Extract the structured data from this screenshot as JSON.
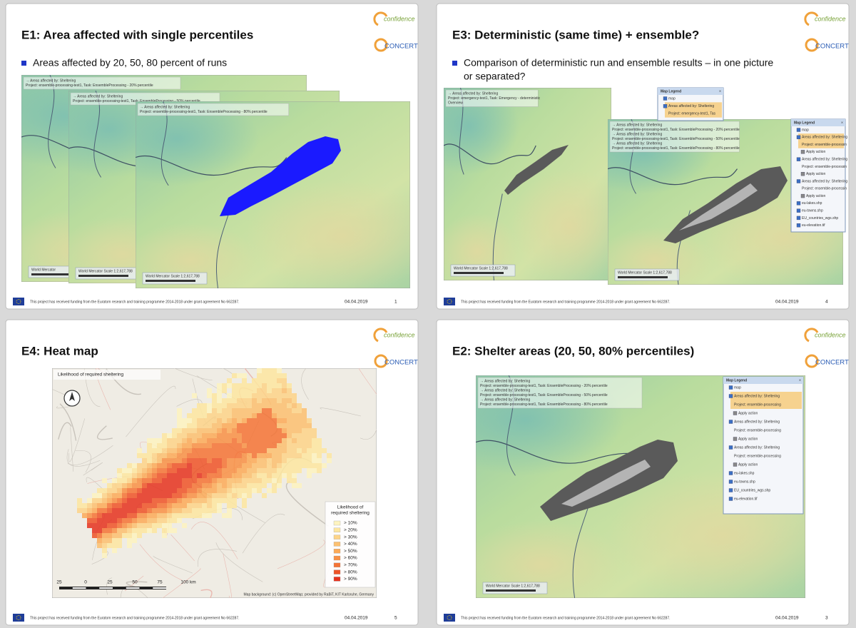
{
  "footer": "This project has received funding from the Euratom research and training programme 2014-2018 under grant agreement No 662287.",
  "logo": {
    "top": "confidence",
    "bottom": "CONCERT"
  },
  "slides": [
    {
      "title": "E1: Area affected with single percentiles",
      "bullet": [
        "Areas affected by 20, 50, 80 percent of runs"
      ],
      "date": "04.04.2019",
      "page": "1",
      "maps": [
        {
          "info": [
            "→ Areas affected by: Sheltering",
            "Project: ensemble-processing-test1, Task: EnsembleProcessing - 20% percentile"
          ],
          "scale": "World Mercator"
        },
        {
          "info": [
            "→ Areas affected by: Sheltering",
            "Project: ensemble-processing-test1, Task: EnsembleProcessing - 50% percentile"
          ],
          "scale": "World Mercator   Scale 1:2,617,788"
        },
        {
          "info": [
            "→ Areas affected by: Sheltering",
            "Project: ensemble-processing-test1, Task: EnsembleProcessing - 80% percentile"
          ],
          "scale": "World Mercator   Scale 1:2,617,788"
        }
      ]
    },
    {
      "title": "E3: Deterministic (same time) + ensemble?",
      "bullet": [
        "Comparison of deterministic run and ensemble results – in one picture",
        "or separated?"
      ],
      "date": "04.04.2019",
      "page": "4",
      "maps": [
        {
          "info": [
            "→ Areas affected by: Sheltering",
            "Project: emergency-test1, Task: Emergency - deterministic",
            "Overview"
          ],
          "scale": "World Mercator   Scale 1:2,617,788"
        },
        {
          "info": [
            "→ Areas affected by: Sheltering",
            "Project: ensemble-processing-test1, Task: EnsembleProcessing - 20% percentile",
            "→ Areas affected by: Sheltering",
            "Project: ensemble-processing-test1, Task: EnsembleProcessing - 50% percentile",
            "→ Areas affected by: Sheltering",
            "Project: ensemble-processing-test1, Task: EnsembleProcessing - 80% percentile"
          ],
          "scale": "World Mercator   Scale 1:2,617,788"
        }
      ],
      "legends": [
        {
          "title": "Map Legend",
          "items": [
            "map",
            "Areas affected by: Sheltering",
            "Project: emergency-test1, Tas"
          ]
        },
        {
          "title": "Map Legend",
          "items": [
            "map",
            "Areas affected by: Sheltering",
            "Project: ensemble-processin",
            "Apply action",
            "Areas affected by: Sheltering",
            "Project: ensemble-processin",
            "Apply action",
            "Areas affected by: Sheltering",
            "Project: ensemble-processin",
            "Apply action",
            "eu-lakes.shp",
            "eu-towns.shp",
            "EU_countries_wgs.shp",
            "eu-elevation.tif"
          ]
        }
      ]
    },
    {
      "title": "E4: Heat map",
      "bullet": [],
      "date": "04.04.2019",
      "page": "5",
      "heatmap": {
        "map_title": "Likelihood of required sheltering",
        "legend_title": [
          "Likelihood of",
          "required sheltering"
        ],
        "legend_items": [
          {
            "label": "> 10%",
            "color": "#fdf3c0"
          },
          {
            "label": "> 20%",
            "color": "#fde6a0"
          },
          {
            "label": "> 30%",
            "color": "#fdd488"
          },
          {
            "label": "> 40%",
            "color": "#fcc070"
          },
          {
            "label": "> 50%",
            "color": "#fbaa58"
          },
          {
            "label": "> 60%",
            "color": "#f89045"
          },
          {
            "label": "> 70%",
            "color": "#f47335"
          },
          {
            "label": "> 80%",
            "color": "#ee5428"
          },
          {
            "label": "> 90%",
            "color": "#e5321e"
          }
        ],
        "scale_labels": [
          "25",
          "0",
          "25",
          "50",
          "75",
          "100 km"
        ],
        "attribution": "Map background: (c) OpenStreetMap; provided by RaBiT, KIT Karlsruhe, Germany"
      }
    },
    {
      "title": "E2: Shelter areas (20, 50, 80% percentiles)",
      "bullet": [],
      "date": "04.04.2019",
      "page": "3",
      "maps": [
        {
          "info": [
            "→ Areas affected by: Sheltering",
            "Project: ensemble-processing-test1, Task: EnsembleProcessing - 20% percentile",
            "→ Areas affected by: Sheltering",
            "Project: ensemble-processing-test1, Task: EnsembleProcessing - 50% percentile",
            "→ Areas affected by: Sheltering",
            "Project: ensemble-processing-test1, Task: EnsembleProcessing - 80% percentile"
          ],
          "scale": "World Mercator   Scale 1:2,617,788"
        }
      ],
      "legends": [
        {
          "title": "Map Legend",
          "items": [
            "map",
            "Areas affected by: Sheltering",
            "Project: ensemble-processing",
            "Apply action",
            "Areas affected by: Sheltering",
            "Project: ensemble-processing",
            "Apply action",
            "Areas affected by: Sheltering",
            "Project: ensemble-processing",
            "Apply action",
            "eu-lakes.shp",
            "eu-towns.shp",
            "EU_countries_wgs.shp",
            "eu-elevation.tif"
          ]
        }
      ]
    }
  ]
}
